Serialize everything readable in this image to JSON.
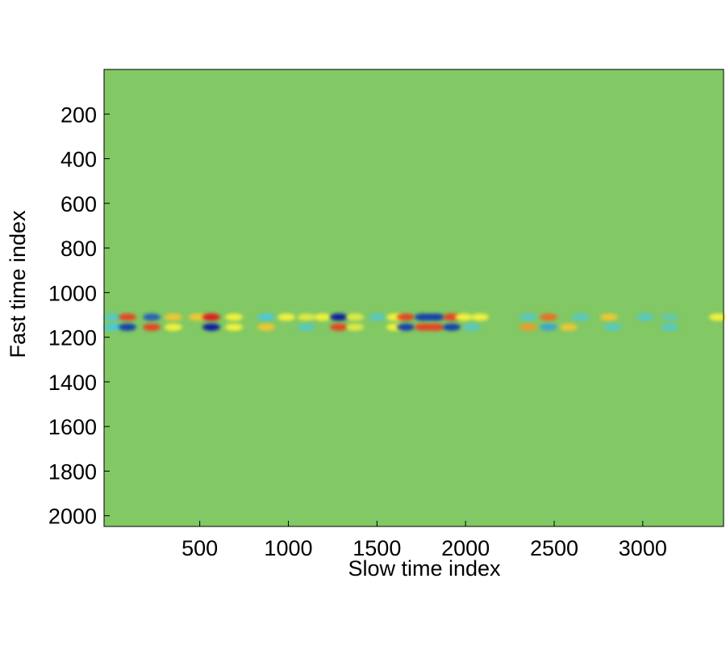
{
  "chart_data": {
    "type": "heatmap",
    "xlabel": "Slow time index",
    "ylabel": "Fast time index",
    "xlim": [
      -40,
      3456
    ],
    "ylim": [
      2048,
      0
    ],
    "xticks": [
      500,
      1000,
      1500,
      2000,
      2500,
      3000
    ],
    "yticks": [
      200,
      400,
      600,
      800,
      1000,
      1200,
      1400,
      1600,
      1800,
      2000
    ],
    "clim": [
      -1,
      1
    ],
    "colorscale": [
      "#0b1ea0",
      "#4ec8d8",
      "#82c864",
      "#f2f23c",
      "#e01a1a"
    ],
    "background": "#82c864",
    "x": [
      10,
      92,
      229,
      351,
      488,
      565,
      693,
      875,
      989,
      1102,
      1193,
      1285,
      1376,
      1503,
      1603,
      1662,
      1762,
      1831,
      1922,
      1990,
      2081,
      2354,
      2468,
      2650,
      2809,
      3014,
      3151,
      3424,
      10,
      92,
      229,
      351,
      565,
      693,
      875,
      1102,
      1285,
      1376,
      1603,
      1662,
      1762,
      1831,
      1922,
      2035,
      2354,
      2468,
      2581,
      2831,
      3151
    ],
    "y": [
      1110,
      1110,
      1110,
      1110,
      1110,
      1110,
      1110,
      1110,
      1110,
      1110,
      1110,
      1110,
      1110,
      1110,
      1110,
      1110,
      1110,
      1110,
      1110,
      1110,
      1110,
      1110,
      1110,
      1110,
      1110,
      1110,
      1110,
      1110,
      1155,
      1155,
      1155,
      1155,
      1155,
      1155,
      1155,
      1155,
      1155,
      1155,
      1155,
      1155,
      1155,
      1155,
      1155,
      1155,
      1155,
      1155,
      1155,
      1155,
      1155
    ],
    "values": [
      -0.4,
      0.9,
      -0.8,
      0.6,
      0.6,
      1,
      0.5,
      -0.5,
      0.5,
      0.4,
      0.5,
      -1,
      0.4,
      -0.4,
      0.5,
      0.9,
      -0.9,
      -0.9,
      0.9,
      0.5,
      0.5,
      -0.4,
      0.8,
      -0.4,
      0.6,
      -0.4,
      -0.3,
      0.5,
      -0.5,
      -0.9,
      0.9,
      0.5,
      -1,
      0.5,
      0.6,
      -0.4,
      0.9,
      0.4,
      0.5,
      -0.9,
      0.9,
      0.9,
      -0.9,
      -0.4,
      0.7,
      -0.6,
      0.6,
      -0.4,
      -0.4
    ]
  }
}
